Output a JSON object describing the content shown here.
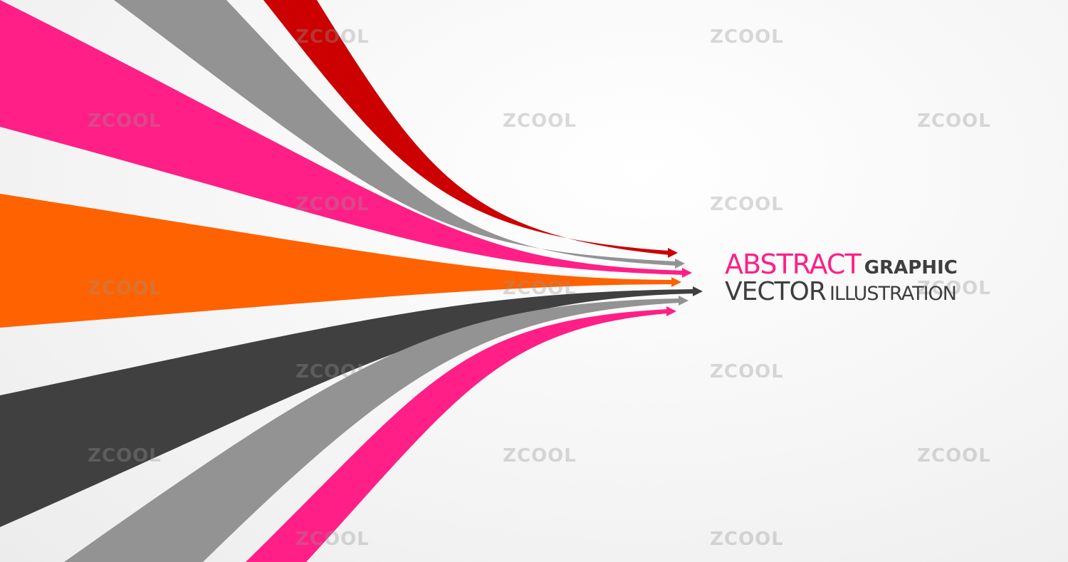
{
  "title": {
    "word1": "ABSTRACT",
    "word2": "GRAPHIC",
    "word3": "VECTOR",
    "word4": "ILLUSTRATION"
  },
  "colors": {
    "accent_pink": "#ff1f86",
    "red": "#cc0000",
    "gray": "#939393",
    "orange": "#ff6200",
    "dark_gray": "#404040",
    "text_dark": "#3e3e3e"
  },
  "bands": [
    {
      "name": "red-arrow-band",
      "color": "#cc0000"
    },
    {
      "name": "gray-arrow-band-top",
      "color": "#939393"
    },
    {
      "name": "pink-arrow-band-top",
      "color": "#ff1f86"
    },
    {
      "name": "orange-arrow-band",
      "color": "#ff6200"
    },
    {
      "name": "dark-gray-arrow-band",
      "color": "#404040"
    },
    {
      "name": "gray-arrow-band-bottom",
      "color": "#939393"
    },
    {
      "name": "pink-arrow-band-bottom",
      "color": "#ff1f86"
    }
  ],
  "watermark": "ZCOOL"
}
